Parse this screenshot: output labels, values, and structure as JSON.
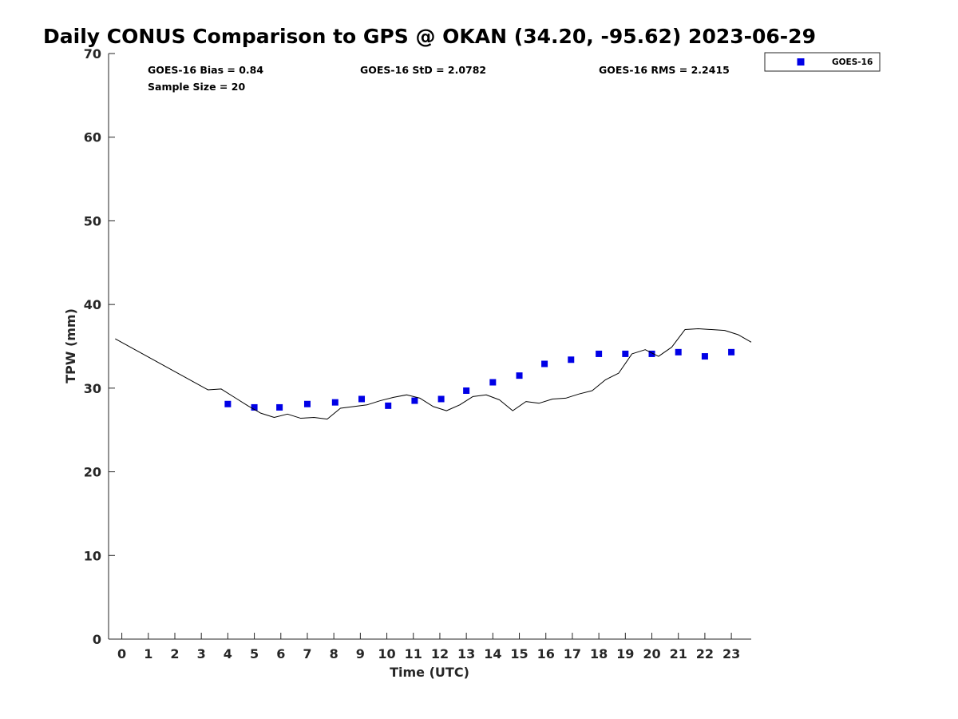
{
  "chart_data": {
    "type": "scatter",
    "title": "Daily CONUS Comparison to GPS @ OKAN (34.20, -95.62) 2023-06-29",
    "xlabel": "Time (UTC)",
    "ylabel": "TPW (mm)",
    "xlim": [
      -0.5,
      23.75
    ],
    "ylim": [
      0,
      70
    ],
    "xticks": [
      0,
      1,
      2,
      3,
      4,
      5,
      6,
      7,
      8,
      9,
      10,
      11,
      12,
      13,
      14,
      15,
      16,
      17,
      18,
      19,
      20,
      21,
      22,
      23
    ],
    "yticks": [
      0,
      10,
      20,
      30,
      40,
      50,
      60,
      70
    ],
    "grid": false,
    "stats": {
      "bias": "GOES-16 Bias = 0.84",
      "sample_size": "Sample Size = 20",
      "std": "GOES-16 StD = 2.0782",
      "rms": "GOES-16 RMS = 2.2415"
    },
    "legend": {
      "placement": "top-right, outside plot",
      "entries": [
        "GOES-16"
      ]
    },
    "series": [
      {
        "name": "GOES-16",
        "kind": "markers",
        "color": "#0000e6",
        "marker": "square",
        "x": [
          4.0,
          5.0,
          5.95,
          7.0,
          8.05,
          9.05,
          10.05,
          11.05,
          12.05,
          13.0,
          14.0,
          15.0,
          15.95,
          16.95,
          18.0,
          19.0,
          20.0,
          21.0,
          22.0,
          23.0
        ],
        "y": [
          28.1,
          27.7,
          27.7,
          28.1,
          28.3,
          28.7,
          27.9,
          28.5,
          28.7,
          29.7,
          30.7,
          31.5,
          32.9,
          33.4,
          34.1,
          34.1,
          34.1,
          34.3,
          33.8,
          34.3
        ]
      },
      {
        "kind": "line",
        "color": "#000000",
        "x": [
          -0.25,
          3.25,
          3.75,
          4.25,
          4.75,
          5.25,
          5.75,
          6.25,
          6.75,
          7.25,
          7.75,
          8.25,
          8.75,
          9.25,
          9.75,
          10.25,
          10.75,
          11.25,
          11.75,
          12.25,
          12.75,
          13.25,
          13.75,
          14.25,
          14.75,
          15.25,
          15.75,
          16.25,
          16.75,
          17.25,
          17.75,
          18.25,
          18.75,
          19.25,
          19.75,
          20.25,
          20.75,
          21.25,
          21.75,
          22.25,
          22.75,
          23.25,
          23.75
        ],
        "y": [
          35.9,
          29.8,
          29.9,
          28.9,
          27.9,
          27.0,
          26.5,
          26.9,
          26.4,
          26.5,
          26.3,
          27.6,
          27.8,
          28.0,
          28.5,
          28.9,
          29.2,
          28.8,
          27.8,
          27.3,
          28.0,
          29.0,
          29.2,
          28.6,
          27.3,
          28.4,
          28.2,
          28.7,
          28.8,
          29.3,
          29.7,
          31.0,
          31.8,
          34.1,
          34.6,
          33.8,
          34.9,
          37.0,
          37.1,
          37.0,
          36.9,
          36.4,
          35.5
        ]
      }
    ]
  }
}
